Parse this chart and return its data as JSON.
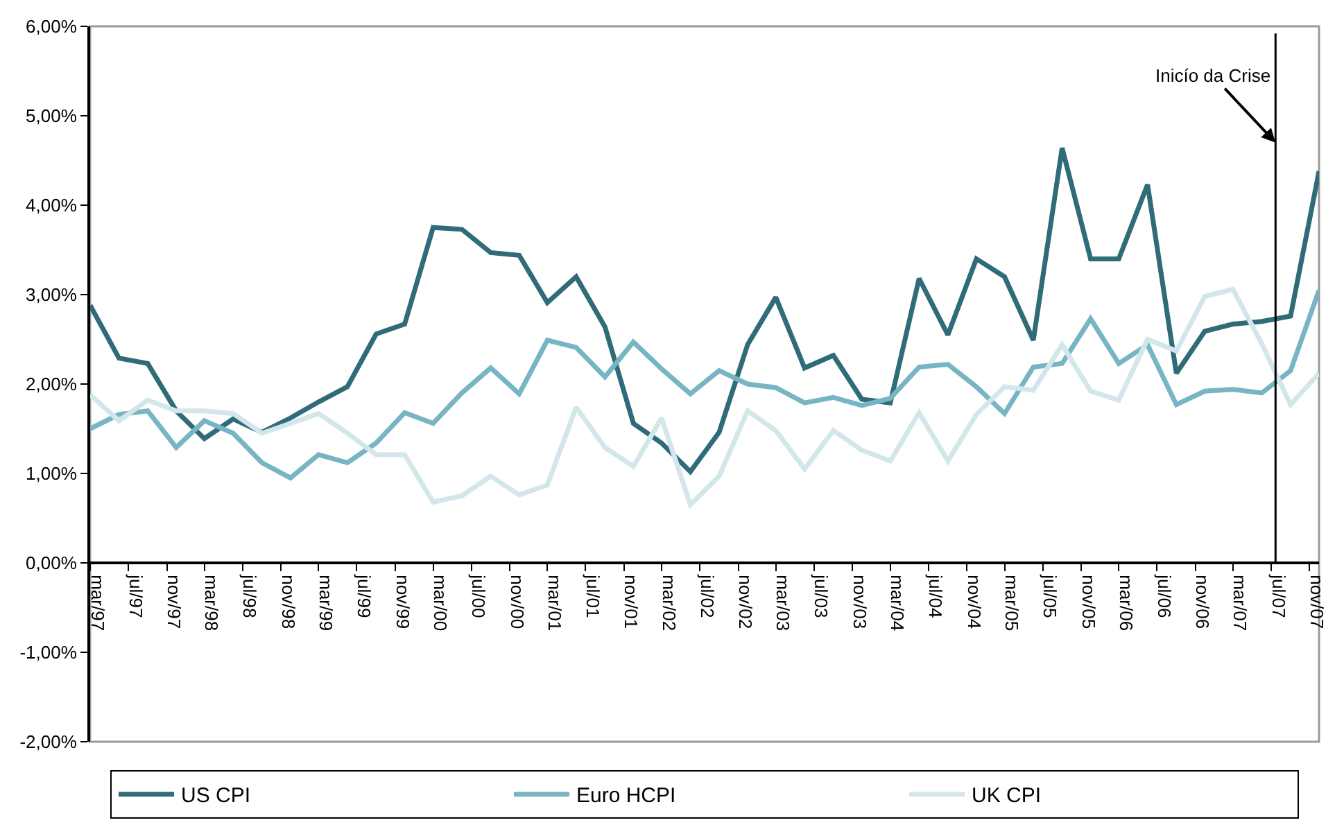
{
  "chart_data": {
    "type": "line",
    "x": [
      "1997-03",
      "1997-06",
      "1997-09",
      "1997-12",
      "1998-03",
      "1998-06",
      "1998-09",
      "1998-12",
      "1999-03",
      "1999-06",
      "1999-09",
      "1999-12",
      "2000-03",
      "2000-06",
      "2000-09",
      "2000-12",
      "2001-03",
      "2001-06",
      "2001-09",
      "2001-12",
      "2002-03",
      "2002-06",
      "2002-09",
      "2002-12",
      "2003-03",
      "2003-06",
      "2003-09",
      "2003-12",
      "2004-03",
      "2004-06",
      "2004-09",
      "2004-12",
      "2005-03",
      "2005-06",
      "2005-09",
      "2005-12",
      "2006-03",
      "2006-06",
      "2006-09",
      "2006-12",
      "2007-03",
      "2007-06",
      "2007-09",
      "2007-12"
    ],
    "series": [
      {
        "name": "US CPI",
        "color": "#2f6b78",
        "values": [
          2.88,
          2.29,
          2.23,
          1.7,
          1.39,
          1.61,
          1.46,
          1.62,
          1.8,
          1.97,
          2.56,
          2.67,
          3.75,
          3.73,
          3.47,
          3.44,
          2.91,
          3.2,
          2.64,
          1.56,
          1.34,
          1.02,
          1.46,
          2.44,
          2.97,
          2.18,
          2.32,
          1.83,
          1.79,
          3.18,
          2.55,
          3.4,
          3.2,
          2.49,
          4.64,
          3.4,
          3.4,
          4.23,
          2.12,
          2.59,
          2.67,
          2.7,
          2.76,
          4.38
        ]
      },
      {
        "name": "Euro HCPI",
        "color": "#77b5c4",
        "values": [
          1.5,
          1.66,
          1.7,
          1.29,
          1.59,
          1.45,
          1.12,
          0.95,
          1.21,
          1.12,
          1.34,
          1.68,
          1.56,
          1.9,
          2.18,
          1.89,
          2.49,
          2.41,
          2.08,
          2.47,
          2.17,
          1.89,
          2.15,
          2.0,
          1.96,
          1.79,
          1.85,
          1.76,
          1.84,
          2.19,
          2.22,
          1.97,
          1.67,
          2.19,
          2.23,
          2.73,
          2.23,
          2.44,
          1.77,
          1.92,
          1.94,
          1.9,
          2.15,
          3.05
        ]
      },
      {
        "name": "UK CPI",
        "color": "#d3e6ea",
        "values": [
          1.88,
          1.59,
          1.82,
          1.7,
          1.7,
          1.67,
          1.45,
          1.56,
          1.67,
          1.45,
          1.21,
          1.21,
          0.68,
          0.75,
          0.97,
          0.76,
          0.87,
          1.74,
          1.29,
          1.08,
          1.62,
          0.65,
          0.97,
          1.7,
          1.48,
          1.05,
          1.48,
          1.26,
          1.14,
          1.68,
          1.14,
          1.66,
          1.97,
          1.93,
          2.44,
          1.92,
          1.82,
          2.5,
          2.37,
          2.98,
          3.06,
          2.45,
          1.77,
          2.12
        ]
      }
    ],
    "xlim": [
      "1997-03",
      "2007-12"
    ],
    "xticks": [
      {
        "value": "1997-03",
        "label": "mar/97"
      },
      {
        "value": "1997-07",
        "label": "jul/97"
      },
      {
        "value": "1997-11",
        "label": "nov/97"
      },
      {
        "value": "1998-03",
        "label": "mar/98"
      },
      {
        "value": "1998-07",
        "label": "jul/98"
      },
      {
        "value": "1998-11",
        "label": "nov/98"
      },
      {
        "value": "1999-03",
        "label": "mar/99"
      },
      {
        "value": "1999-07",
        "label": "jul/99"
      },
      {
        "value": "1999-11",
        "label": "nov/99"
      },
      {
        "value": "2000-03",
        "label": "mar/00"
      },
      {
        "value": "2000-07",
        "label": "jul/00"
      },
      {
        "value": "2000-11",
        "label": "nov/00"
      },
      {
        "value": "2001-03",
        "label": "mar/01"
      },
      {
        "value": "2001-07",
        "label": "jul/01"
      },
      {
        "value": "2001-11",
        "label": "nov/01"
      },
      {
        "value": "2002-03",
        "label": "mar/02"
      },
      {
        "value": "2002-07",
        "label": "jul/02"
      },
      {
        "value": "2002-11",
        "label": "nov/02"
      },
      {
        "value": "2003-03",
        "label": "mar/03"
      },
      {
        "value": "2003-07",
        "label": "jul/03"
      },
      {
        "value": "2003-11",
        "label": "nov/03"
      },
      {
        "value": "2004-03",
        "label": "mar/04"
      },
      {
        "value": "2004-07",
        "label": "jul/04"
      },
      {
        "value": "2004-11",
        "label": "nov/04"
      },
      {
        "value": "2005-03",
        "label": "mar/05"
      },
      {
        "value": "2005-07",
        "label": "jul/05"
      },
      {
        "value": "2005-11",
        "label": "nov/05"
      },
      {
        "value": "2006-03",
        "label": "mar/06"
      },
      {
        "value": "2006-07",
        "label": "jul/06"
      },
      {
        "value": "2006-11",
        "label": "nov/06"
      },
      {
        "value": "2007-03",
        "label": "mar/07"
      },
      {
        "value": "2007-07",
        "label": "jul/07"
      },
      {
        "value": "2007-11",
        "label": "nov/07"
      }
    ],
    "ylim": [
      -2,
      6
    ],
    "yticks": [
      {
        "value": -2,
        "label": "-2,00%"
      },
      {
        "value": -1,
        "label": "-1,00%"
      },
      {
        "value": 0,
        "label": "0,00%"
      },
      {
        "value": 1,
        "label": "1,00%"
      },
      {
        "value": 2,
        "label": "2,00%"
      },
      {
        "value": 3,
        "label": "3,00%"
      },
      {
        "value": 4,
        "label": "4,00%"
      },
      {
        "value": 5,
        "label": "5,00%"
      },
      {
        "value": 6,
        "label": "6,00%"
      }
    ],
    "ref_lines": [
      {
        "axis": "x",
        "value": "2007-07-15",
        "color": "#000000"
      }
    ],
    "annotations": [
      {
        "text": "Inicío da Crise",
        "x": "2007-07-15",
        "y": 4.7
      }
    ],
    "legend": "bottom",
    "grid": false,
    "marker": "none",
    "line_style": "solid"
  }
}
